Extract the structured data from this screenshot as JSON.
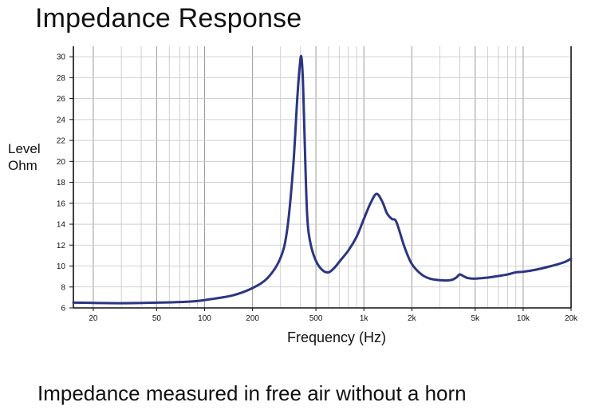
{
  "chart_data": {
    "type": "line",
    "title": "Impedance Response",
    "xlabel": "Frequency (Hz)",
    "ylabel": [
      "Level",
      "Ohm"
    ],
    "caption": "Impedance measured in free air without a horn",
    "x_scale": "log",
    "xlim": [
      15,
      20000
    ],
    "ylim": [
      6,
      31
    ],
    "grid": true,
    "x_ticks": [
      {
        "value": 20,
        "label": "20"
      },
      {
        "value": 50,
        "label": "50"
      },
      {
        "value": 100,
        "label": "100"
      },
      {
        "value": 200,
        "label": "200"
      },
      {
        "value": 500,
        "label": "500"
      },
      {
        "value": 1000,
        "label": "1k"
      },
      {
        "value": 2000,
        "label": "2k"
      },
      {
        "value": 5000,
        "label": "5k"
      },
      {
        "value": 10000,
        "label": "10k"
      },
      {
        "value": 20000,
        "label": "20k"
      }
    ],
    "y_ticks": [
      6,
      8,
      10,
      12,
      14,
      16,
      18,
      20,
      22,
      24,
      26,
      28,
      30
    ],
    "line_color": "#2b3582",
    "series": [
      {
        "x": [
          15,
          20,
          30,
          50,
          80,
          100,
          150,
          200,
          250,
          300,
          330,
          360,
          380,
          395,
          405,
          415,
          425,
          440,
          460,
          500,
          550,
          600,
          650,
          700,
          800,
          900,
          1000,
          1100,
          1200,
          1300,
          1400,
          1500,
          1600,
          1800,
          2000,
          2300,
          2600,
          3000,
          3500,
          3800,
          4000,
          4200,
          4500,
          5000,
          6000,
          7000,
          8000,
          9000,
          10000,
          12000,
          15000,
          18000,
          20000
        ],
        "y": [
          6.5,
          6.48,
          6.45,
          6.5,
          6.6,
          6.75,
          7.2,
          7.9,
          8.9,
          10.8,
          13.5,
          19.5,
          25.5,
          29.0,
          30.0,
          27.5,
          22.0,
          15.0,
          12.3,
          10.5,
          9.6,
          9.4,
          9.8,
          10.4,
          11.5,
          12.8,
          14.5,
          16.0,
          16.9,
          16.2,
          15.0,
          14.5,
          14.2,
          11.8,
          10.2,
          9.2,
          8.8,
          8.65,
          8.65,
          8.9,
          9.2,
          9.05,
          8.85,
          8.8,
          8.9,
          9.05,
          9.2,
          9.4,
          9.45,
          9.65,
          10.0,
          10.35,
          10.7
        ]
      }
    ]
  }
}
